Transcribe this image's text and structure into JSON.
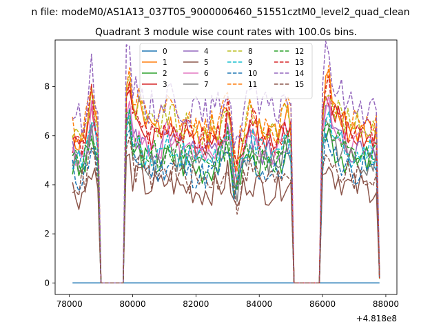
{
  "chart_data": {
    "type": "line",
    "suptitle": "n file: modeM0/AS1A13_037T05_9000006460_51551cztM0_level2_quad_clean",
    "title": "Quadrant 3 module wise count rates with 100.0s bins.",
    "xlabel": "",
    "ylabel": "",
    "offset_text": "+4.818e8",
    "xlim": [
      77550,
      88350
    ],
    "ylim": [
      -0.47,
      9.9
    ],
    "x_ticks": [
      78000,
      80000,
      82000,
      84000,
      86000,
      88000
    ],
    "x_tick_labels": [
      "78000",
      "80000",
      "82000",
      "84000",
      "86000",
      "88000"
    ],
    "y_ticks": [
      0,
      2,
      4,
      6,
      8
    ],
    "y_tick_labels": [
      "0",
      "2",
      "4",
      "6",
      "8"
    ],
    "grid": false,
    "legend": {
      "placement": "top-center",
      "columns": 4
    },
    "x": {
      "start": 78100,
      "step": 100,
      "count": 98
    },
    "segments": [
      {
        "start": 78100,
        "end": 78900
      },
      {
        "start": 79800,
        "end": 85000
      },
      {
        "start": 86000,
        "end": 87800
      }
    ],
    "series": [
      {
        "name": "0",
        "color": "#1f77b4",
        "dash": "solid",
        "base": 0.0,
        "amp": 0.0,
        "seed": 1
      },
      {
        "name": "1",
        "color": "#ff7f0e",
        "dash": "solid",
        "base": 6.3,
        "amp": 0.4,
        "seed": 2
      },
      {
        "name": "2",
        "color": "#2ca02c",
        "dash": "solid",
        "base": 4.9,
        "amp": 0.4,
        "seed": 3
      },
      {
        "name": "3",
        "color": "#d62728",
        "dash": "solid",
        "base": 6.0,
        "amp": 0.4,
        "seed": 4
      },
      {
        "name": "4",
        "color": "#9467bd",
        "dash": "solid",
        "base": 5.4,
        "amp": 0.4,
        "seed": 5
      },
      {
        "name": "5",
        "color": "#8c564b",
        "dash": "solid",
        "base": 3.9,
        "amp": 0.4,
        "seed": 6
      },
      {
        "name": "6",
        "color": "#e377c2",
        "dash": "solid",
        "base": 5.6,
        "amp": 0.4,
        "seed": 7
      },
      {
        "name": "7",
        "color": "#7f7f7f",
        "dash": "solid",
        "base": 5.0,
        "amp": 0.4,
        "seed": 8
      },
      {
        "name": "8",
        "color": "#bcbd22",
        "dash": "dashed",
        "base": 6.4,
        "amp": 0.4,
        "seed": 9
      },
      {
        "name": "9",
        "color": "#17becf",
        "dash": "dashed",
        "base": 5.3,
        "amp": 0.4,
        "seed": 10
      },
      {
        "name": "10",
        "color": "#1f77b4",
        "dash": "dashed",
        "base": 4.6,
        "amp": 0.4,
        "seed": 11
      },
      {
        "name": "11",
        "color": "#ff7f0e",
        "dash": "dashed",
        "base": 6.6,
        "amp": 0.4,
        "seed": 12
      },
      {
        "name": "12",
        "color": "#2ca02c",
        "dash": "dashed",
        "base": 5.2,
        "amp": 0.4,
        "seed": 13
      },
      {
        "name": "13",
        "color": "#d62728",
        "dash": "dashed",
        "base": 6.1,
        "amp": 0.4,
        "seed": 14
      },
      {
        "name": "14",
        "color": "#9467bd",
        "dash": "dashed",
        "base": 7.2,
        "amp": 0.45,
        "seed": 15
      },
      {
        "name": "15",
        "color": "#8c564b",
        "dash": "dashed",
        "base": 4.3,
        "amp": 0.4,
        "seed": 16
      }
    ]
  }
}
